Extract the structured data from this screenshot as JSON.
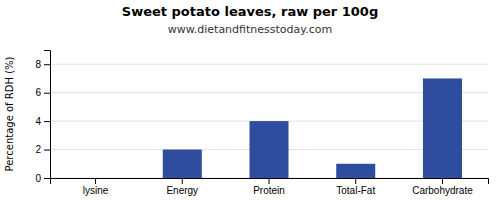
{
  "chart_data": {
    "type": "bar",
    "title": "Sweet potato leaves, raw per 100g",
    "subtitle": "www.dietandfitnesstoday.com",
    "categories": [
      "lysine",
      "Energy",
      "Protein",
      "Total-Fat",
      "Carbohydrate"
    ],
    "values": [
      0.0,
      2.0,
      4.0,
      1.0,
      7.0
    ],
    "color": "#2e4d9e",
    "ylabel": "Percentage of RDH (%)",
    "ylim": [
      0,
      9
    ],
    "yticks": [
      0,
      2,
      4,
      6,
      8
    ],
    "grid": true
  }
}
